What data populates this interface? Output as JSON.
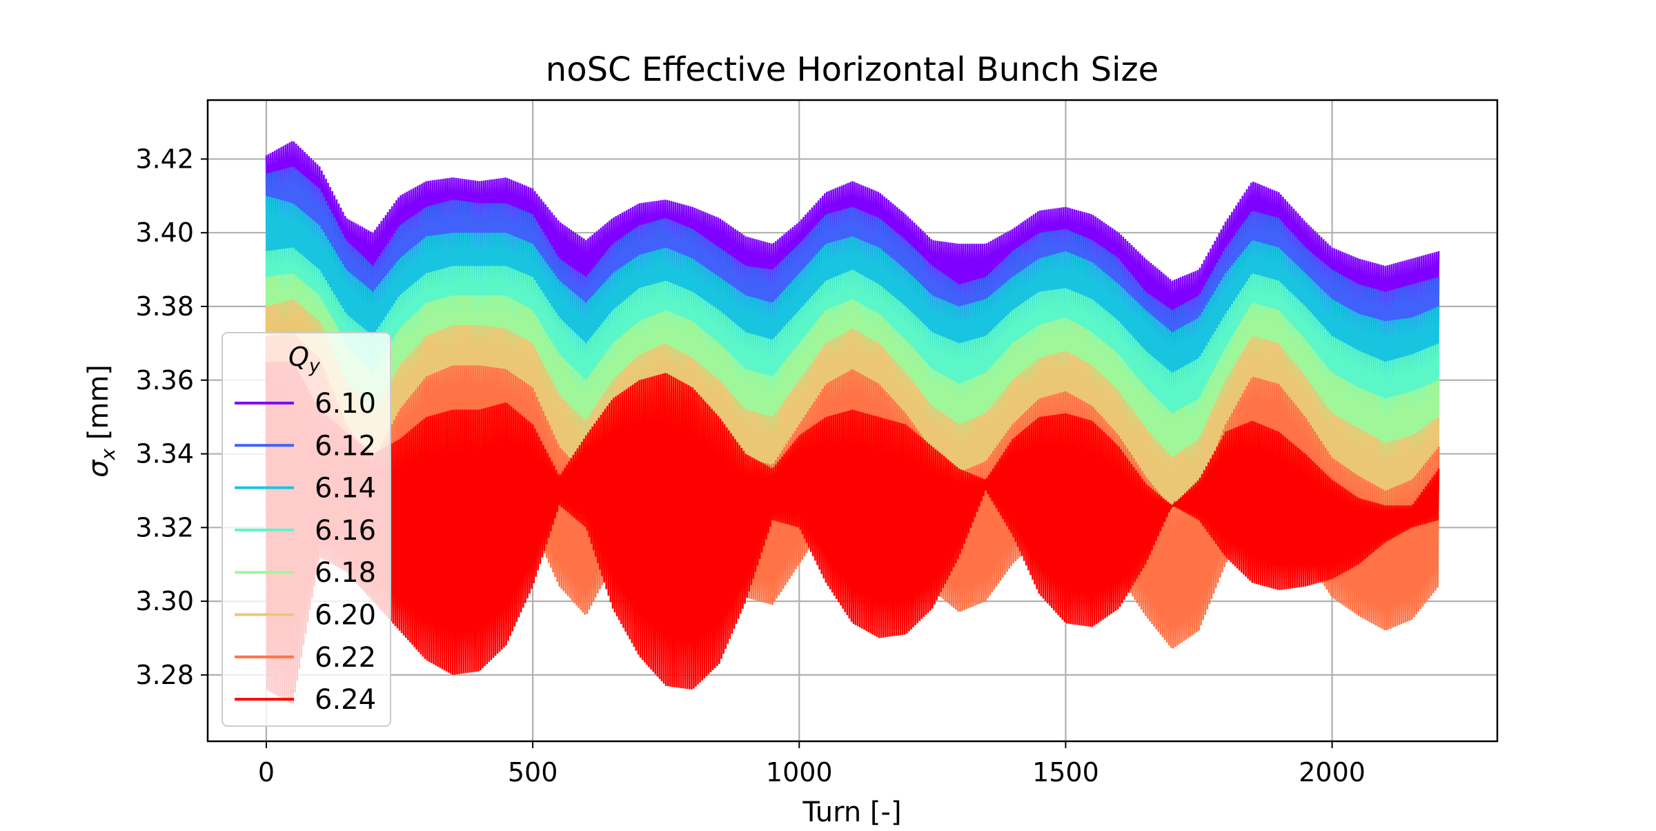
{
  "chart_data": {
    "type": "line",
    "title": "noSC Effective Horizontal Bunch Size",
    "xlabel": "Turn [-]",
    "ylabel_symbol": "σ",
    "ylabel_sub": "x",
    "ylabel_unit": " [mm]",
    "xlim": [
      -110,
      2310
    ],
    "ylim": [
      3.262,
      3.436
    ],
    "xticks": [
      0,
      500,
      1000,
      1500,
      2000
    ],
    "yticks": [
      3.28,
      3.3,
      3.32,
      3.34,
      3.36,
      3.38,
      3.4,
      3.42
    ],
    "ytick_labels": [
      "3.28",
      "3.30",
      "3.32",
      "3.34",
      "3.36",
      "3.38",
      "3.40",
      "3.42"
    ],
    "grid": true,
    "legend": {
      "title_symbol": "Q",
      "title_sub": "y",
      "placement": "lower-left"
    },
    "x_range": [
      0,
      2200
    ],
    "series": [
      {
        "name": "6.10",
        "color": "#8000ff",
        "x": [
          0,
          50,
          100,
          150,
          200,
          250,
          300,
          350,
          400,
          450,
          500,
          550,
          600,
          650,
          700,
          750,
          800,
          850,
          900,
          950,
          1000,
          1050,
          1100,
          1150,
          1200,
          1250,
          1300,
          1350,
          1400,
          1450,
          1500,
          1550,
          1600,
          1650,
          1700,
          1750,
          1800,
          1850,
          1900,
          1950,
          2000,
          2050,
          2100,
          2150,
          2200
        ],
        "upper": [
          3.421,
          3.425,
          3.418,
          3.404,
          3.4,
          3.41,
          3.414,
          3.415,
          3.414,
          3.415,
          3.412,
          3.403,
          3.398,
          3.404,
          3.408,
          3.409,
          3.407,
          3.404,
          3.399,
          3.397,
          3.403,
          3.411,
          3.414,
          3.411,
          3.405,
          3.398,
          3.397,
          3.397,
          3.401,
          3.406,
          3.407,
          3.405,
          3.4,
          3.393,
          3.387,
          3.39,
          3.403,
          3.414,
          3.411,
          3.403,
          3.396,
          3.393,
          3.391,
          3.393,
          3.395
        ],
        "lower": [
          3.398,
          3.398,
          3.394,
          3.381,
          3.376,
          3.386,
          3.39,
          3.391,
          3.39,
          3.391,
          3.388,
          3.379,
          3.375,
          3.38,
          3.384,
          3.385,
          3.383,
          3.38,
          3.375,
          3.373,
          3.379,
          3.387,
          3.39,
          3.387,
          3.381,
          3.374,
          3.373,
          3.373,
          3.377,
          3.382,
          3.383,
          3.381,
          3.376,
          3.369,
          3.363,
          3.366,
          3.379,
          3.39,
          3.387,
          3.379,
          3.372,
          3.369,
          3.367,
          3.369,
          3.371
        ]
      },
      {
        "name": "6.12",
        "color": "#4062fa",
        "x": [
          0,
          50,
          100,
          150,
          200,
          250,
          300,
          350,
          400,
          450,
          500,
          550,
          600,
          650,
          700,
          750,
          800,
          850,
          900,
          950,
          1000,
          1050,
          1100,
          1150,
          1200,
          1250,
          1300,
          1350,
          1400,
          1450,
          1500,
          1550,
          1600,
          1650,
          1700,
          1750,
          1800,
          1850,
          1900,
          1950,
          2000,
          2050,
          2100,
          2150,
          2200
        ],
        "upper": [
          3.416,
          3.418,
          3.412,
          3.398,
          3.391,
          3.402,
          3.407,
          3.409,
          3.408,
          3.408,
          3.405,
          3.393,
          3.388,
          3.397,
          3.402,
          3.404,
          3.401,
          3.396,
          3.391,
          3.39,
          3.397,
          3.405,
          3.407,
          3.404,
          3.398,
          3.391,
          3.386,
          3.388,
          3.395,
          3.4,
          3.401,
          3.398,
          3.393,
          3.384,
          3.379,
          3.383,
          3.396,
          3.406,
          3.404,
          3.396,
          3.39,
          3.386,
          3.384,
          3.386,
          3.388
        ],
        "lower": [
          3.384,
          3.386,
          3.381,
          3.366,
          3.361,
          3.372,
          3.377,
          3.379,
          3.378,
          3.378,
          3.375,
          3.363,
          3.358,
          3.367,
          3.372,
          3.374,
          3.371,
          3.366,
          3.361,
          3.36,
          3.367,
          3.375,
          3.377,
          3.374,
          3.368,
          3.361,
          3.356,
          3.358,
          3.365,
          3.37,
          3.371,
          3.368,
          3.363,
          3.354,
          3.349,
          3.353,
          3.366,
          3.376,
          3.374,
          3.366,
          3.36,
          3.356,
          3.354,
          3.356,
          3.358
        ]
      },
      {
        "name": "6.14",
        "color": "#19c4e0",
        "x": [
          0,
          50,
          100,
          150,
          200,
          250,
          300,
          350,
          400,
          450,
          500,
          550,
          600,
          650,
          700,
          750,
          800,
          850,
          900,
          950,
          1000,
          1050,
          1100,
          1150,
          1200,
          1250,
          1300,
          1350,
          1400,
          1450,
          1500,
          1550,
          1600,
          1650,
          1700,
          1750,
          1800,
          1850,
          1900,
          1950,
          2000,
          2050,
          2100,
          2150,
          2200
        ],
        "upper": [
          3.41,
          3.408,
          3.402,
          3.39,
          3.384,
          3.393,
          3.399,
          3.4,
          3.4,
          3.4,
          3.397,
          3.387,
          3.381,
          3.389,
          3.394,
          3.396,
          3.393,
          3.388,
          3.383,
          3.381,
          3.389,
          3.397,
          3.399,
          3.396,
          3.39,
          3.383,
          3.38,
          3.382,
          3.388,
          3.393,
          3.395,
          3.392,
          3.386,
          3.379,
          3.373,
          3.377,
          3.389,
          3.398,
          3.396,
          3.389,
          3.382,
          3.378,
          3.376,
          3.377,
          3.38
        ],
        "lower": [
          3.376,
          3.378,
          3.372,
          3.358,
          3.352,
          3.362,
          3.368,
          3.37,
          3.369,
          3.369,
          3.366,
          3.355,
          3.349,
          3.358,
          3.363,
          3.365,
          3.362,
          3.357,
          3.352,
          3.35,
          3.358,
          3.366,
          3.368,
          3.365,
          3.359,
          3.352,
          3.349,
          3.351,
          3.357,
          3.362,
          3.364,
          3.361,
          3.355,
          3.348,
          3.342,
          3.346,
          3.358,
          3.367,
          3.365,
          3.358,
          3.351,
          3.347,
          3.345,
          3.346,
          3.349
        ]
      },
      {
        "name": "6.16",
        "color": "#5cf7c8",
        "x": [
          0,
          50,
          100,
          150,
          200,
          250,
          300,
          350,
          400,
          450,
          500,
          550,
          600,
          650,
          700,
          750,
          800,
          850,
          900,
          950,
          1000,
          1050,
          1100,
          1150,
          1200,
          1250,
          1300,
          1350,
          1400,
          1450,
          1500,
          1550,
          1600,
          1650,
          1700,
          1750,
          1800,
          1850,
          1900,
          1950,
          2000,
          2050,
          2100,
          2150,
          2200
        ],
        "upper": [
          3.395,
          3.396,
          3.39,
          3.378,
          3.372,
          3.383,
          3.389,
          3.391,
          3.391,
          3.391,
          3.388,
          3.377,
          3.37,
          3.379,
          3.385,
          3.387,
          3.384,
          3.379,
          3.373,
          3.371,
          3.379,
          3.387,
          3.39,
          3.386,
          3.38,
          3.373,
          3.37,
          3.372,
          3.379,
          3.384,
          3.385,
          3.382,
          3.376,
          3.368,
          3.362,
          3.366,
          3.378,
          3.389,
          3.387,
          3.38,
          3.372,
          3.368,
          3.365,
          3.367,
          3.37
        ],
        "lower": [
          3.365,
          3.368,
          3.362,
          3.348,
          3.341,
          3.352,
          3.359,
          3.361,
          3.361,
          3.361,
          3.357,
          3.346,
          3.339,
          3.348,
          3.354,
          3.356,
          3.353,
          3.348,
          3.342,
          3.34,
          3.348,
          3.356,
          3.359,
          3.355,
          3.349,
          3.342,
          3.339,
          3.341,
          3.348,
          3.353,
          3.354,
          3.351,
          3.345,
          3.337,
          3.331,
          3.335,
          3.347,
          3.358,
          3.356,
          3.349,
          3.341,
          3.337,
          3.334,
          3.336,
          3.339
        ]
      },
      {
        "name": "6.18",
        "color": "#a0f79a",
        "x": [
          0,
          50,
          100,
          150,
          200,
          250,
          300,
          350,
          400,
          450,
          500,
          550,
          600,
          650,
          700,
          750,
          800,
          850,
          900,
          950,
          1000,
          1050,
          1100,
          1150,
          1200,
          1250,
          1300,
          1350,
          1400,
          1450,
          1500,
          1550,
          1600,
          1650,
          1700,
          1750,
          1800,
          1850,
          1900,
          1950,
          2000,
          2050,
          2100,
          2150,
          2200
        ],
        "upper": [
          3.388,
          3.389,
          3.383,
          3.37,
          3.362,
          3.374,
          3.381,
          3.383,
          3.383,
          3.383,
          3.379,
          3.367,
          3.36,
          3.37,
          3.376,
          3.379,
          3.376,
          3.37,
          3.363,
          3.361,
          3.37,
          3.379,
          3.382,
          3.378,
          3.371,
          3.363,
          3.359,
          3.362,
          3.37,
          3.375,
          3.377,
          3.373,
          3.367,
          3.358,
          3.351,
          3.355,
          3.369,
          3.381,
          3.379,
          3.371,
          3.362,
          3.358,
          3.355,
          3.357,
          3.36
        ],
        "lower": [
          3.358,
          3.36,
          3.354,
          3.34,
          3.332,
          3.344,
          3.351,
          3.353,
          3.353,
          3.353,
          3.349,
          3.337,
          3.33,
          3.34,
          3.346,
          3.349,
          3.346,
          3.34,
          3.333,
          3.331,
          3.34,
          3.349,
          3.352,
          3.348,
          3.341,
          3.333,
          3.329,
          3.332,
          3.34,
          3.345,
          3.347,
          3.343,
          3.337,
          3.328,
          3.321,
          3.325,
          3.339,
          3.351,
          3.349,
          3.341,
          3.332,
          3.328,
          3.325,
          3.327,
          3.33
        ]
      },
      {
        "name": "6.20",
        "color": "#ebc775",
        "x": [
          0,
          50,
          100,
          150,
          200,
          250,
          300,
          350,
          400,
          450,
          500,
          550,
          600,
          650,
          700,
          750,
          800,
          850,
          900,
          950,
          1000,
          1050,
          1100,
          1150,
          1200,
          1250,
          1300,
          1350,
          1400,
          1450,
          1500,
          1550,
          1600,
          1650,
          1700,
          1750,
          1800,
          1850,
          1900,
          1950,
          2000,
          2050,
          2100,
          2150,
          2200
        ],
        "upper": [
          3.38,
          3.382,
          3.376,
          3.36,
          3.351,
          3.364,
          3.372,
          3.375,
          3.375,
          3.374,
          3.37,
          3.356,
          3.349,
          3.36,
          3.367,
          3.37,
          3.366,
          3.36,
          3.352,
          3.35,
          3.36,
          3.37,
          3.374,
          3.37,
          3.362,
          3.353,
          3.348,
          3.351,
          3.36,
          3.366,
          3.368,
          3.364,
          3.357,
          3.347,
          3.339,
          3.344,
          3.36,
          3.372,
          3.37,
          3.361,
          3.351,
          3.347,
          3.343,
          3.345,
          3.35
        ],
        "lower": [
          3.345,
          3.348,
          3.342,
          3.326,
          3.317,
          3.33,
          3.338,
          3.341,
          3.341,
          3.34,
          3.336,
          3.322,
          3.315,
          3.326,
          3.333,
          3.336,
          3.332,
          3.326,
          3.318,
          3.316,
          3.326,
          3.336,
          3.34,
          3.336,
          3.328,
          3.319,
          3.314,
          3.317,
          3.326,
          3.332,
          3.334,
          3.33,
          3.323,
          3.313,
          3.305,
          3.31,
          3.326,
          3.338,
          3.336,
          3.327,
          3.317,
          3.313,
          3.309,
          3.311,
          3.316
        ]
      },
      {
        "name": "6.22",
        "color": "#ff7346",
        "x": [
          0,
          50,
          100,
          150,
          200,
          250,
          300,
          350,
          400,
          450,
          500,
          550,
          600,
          650,
          700,
          750,
          800,
          850,
          900,
          950,
          1000,
          1050,
          1100,
          1150,
          1200,
          1250,
          1300,
          1350,
          1400,
          1450,
          1500,
          1550,
          1600,
          1650,
          1700,
          1750,
          1800,
          1850,
          1900,
          1950,
          2000,
          2050,
          2100,
          2150,
          2200
        ],
        "upper": [
          3.372,
          3.373,
          3.366,
          3.348,
          3.338,
          3.352,
          3.361,
          3.364,
          3.364,
          3.363,
          3.358,
          3.342,
          3.334,
          3.348,
          3.356,
          3.359,
          3.355,
          3.348,
          3.339,
          3.337,
          3.348,
          3.359,
          3.363,
          3.359,
          3.351,
          3.341,
          3.335,
          3.338,
          3.348,
          3.355,
          3.357,
          3.353,
          3.345,
          3.334,
          3.325,
          3.33,
          3.348,
          3.361,
          3.359,
          3.35,
          3.339,
          3.334,
          3.33,
          3.333,
          3.342
        ],
        "lower": [
          3.332,
          3.334,
          3.328,
          3.31,
          3.3,
          3.314,
          3.323,
          3.326,
          3.326,
          3.325,
          3.32,
          3.304,
          3.296,
          3.31,
          3.318,
          3.321,
          3.317,
          3.31,
          3.301,
          3.299,
          3.31,
          3.321,
          3.325,
          3.321,
          3.313,
          3.303,
          3.297,
          3.3,
          3.31,
          3.317,
          3.319,
          3.315,
          3.307,
          3.296,
          3.287,
          3.292,
          3.31,
          3.323,
          3.321,
          3.312,
          3.301,
          3.296,
          3.292,
          3.295,
          3.304
        ]
      },
      {
        "name": "6.24",
        "color": "#ff0000",
        "x": [
          0,
          50,
          100,
          150,
          200,
          250,
          300,
          350,
          400,
          450,
          500,
          550,
          600,
          650,
          700,
          750,
          800,
          850,
          900,
          950,
          1000,
          1050,
          1100,
          1150,
          1200,
          1250,
          1300,
          1350,
          1400,
          1450,
          1500,
          1550,
          1600,
          1650,
          1700,
          1750,
          1800,
          1850,
          1900,
          1950,
          2000,
          2050,
          2100,
          2150,
          2200
        ],
        "upper": [
          3.365,
          3.365,
          3.352,
          3.346,
          3.34,
          3.344,
          3.35,
          3.352,
          3.352,
          3.354,
          3.348,
          3.334,
          3.345,
          3.355,
          3.36,
          3.362,
          3.358,
          3.35,
          3.34,
          3.336,
          3.345,
          3.35,
          3.352,
          3.35,
          3.348,
          3.342,
          3.336,
          3.333,
          3.344,
          3.35,
          3.351,
          3.349,
          3.342,
          3.332,
          3.326,
          3.333,
          3.346,
          3.349,
          3.346,
          3.34,
          3.333,
          3.328,
          3.326,
          3.326,
          3.336
        ],
        "lower": [
          3.276,
          3.272,
          3.312,
          3.308,
          3.3,
          3.292,
          3.284,
          3.28,
          3.281,
          3.288,
          3.304,
          3.326,
          3.32,
          3.298,
          3.285,
          3.277,
          3.276,
          3.283,
          3.3,
          3.322,
          3.32,
          3.305,
          3.294,
          3.29,
          3.291,
          3.298,
          3.312,
          3.33,
          3.318,
          3.302,
          3.294,
          3.293,
          3.298,
          3.31,
          3.326,
          3.322,
          3.312,
          3.305,
          3.303,
          3.304,
          3.306,
          3.31,
          3.316,
          3.32,
          3.322
        ]
      }
    ]
  }
}
